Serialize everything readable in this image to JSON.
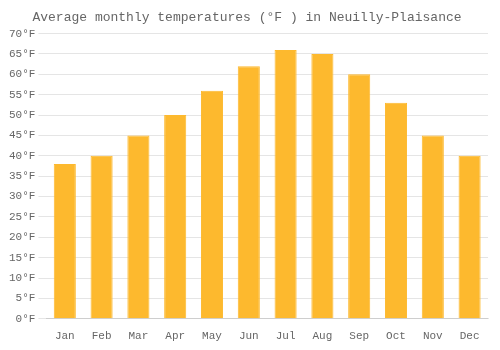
{
  "chart_data": {
    "type": "bar",
    "title": "Average monthly temperatures (°F ) in Neuilly-Plaisance",
    "categories": [
      "Jan",
      "Feb",
      "Mar",
      "Apr",
      "May",
      "Jun",
      "Jul",
      "Aug",
      "Sep",
      "Oct",
      "Nov",
      "Dec"
    ],
    "values": [
      38,
      40,
      45,
      50,
      56,
      62,
      66,
      65,
      60,
      53,
      45,
      40
    ],
    "color": "#FDB92E",
    "ylim": [
      0,
      70
    ],
    "yticks": [
      {
        "value": 0,
        "label": "0°F"
      },
      {
        "value": 5,
        "label": "5°F"
      },
      {
        "value": 10,
        "label": "10°F"
      },
      {
        "value": 15,
        "label": "15°F"
      },
      {
        "value": 20,
        "label": "20°F"
      },
      {
        "value": 25,
        "label": "25°F"
      },
      {
        "value": 30,
        "label": "30°F"
      },
      {
        "value": 35,
        "label": "35°F"
      },
      {
        "value": 40,
        "label": "40°F"
      },
      {
        "value": 45,
        "label": "45°F"
      },
      {
        "value": 50,
        "label": "50°F"
      },
      {
        "value": 55,
        "label": "55°F"
      },
      {
        "value": 60,
        "label": "60°F"
      },
      {
        "value": 65,
        "label": "65°F"
      },
      {
        "value": 70,
        "label": "70°F"
      }
    ],
    "grid": true
  }
}
